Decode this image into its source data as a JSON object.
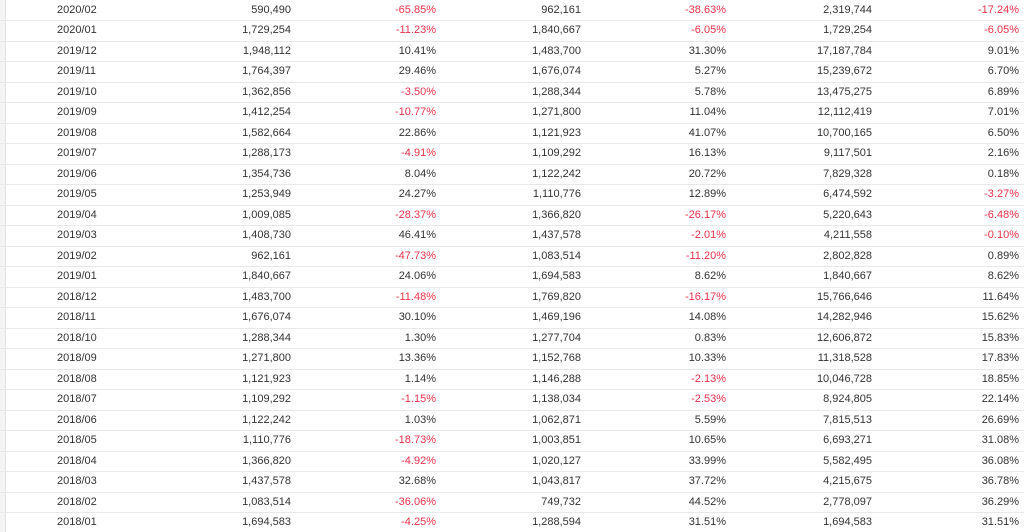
{
  "rows": [
    [
      "2020/02",
      "590,490",
      "-65.85%",
      "962,161",
      "-38.63%",
      "2,319,744",
      "-17.24%"
    ],
    [
      "2020/01",
      "1,729,254",
      "-11.23%",
      "1,840,667",
      "-6.05%",
      "1,729,254",
      "-6.05%"
    ],
    [
      "2019/12",
      "1,948,112",
      "10.41%",
      "1,483,700",
      "31.30%",
      "17,187,784",
      "9.01%"
    ],
    [
      "2019/11",
      "1,764,397",
      "29.46%",
      "1,676,074",
      "5.27%",
      "15,239,672",
      "6.70%"
    ],
    [
      "2019/10",
      "1,362,856",
      "-3.50%",
      "1,288,344",
      "5.78%",
      "13,475,275",
      "6.89%"
    ],
    [
      "2019/09",
      "1,412,254",
      "-10.77%",
      "1,271,800",
      "11.04%",
      "12,112,419",
      "7.01%"
    ],
    [
      "2019/08",
      "1,582,664",
      "22.86%",
      "1,121,923",
      "41.07%",
      "10,700,165",
      "6.50%"
    ],
    [
      "2019/07",
      "1,288,173",
      "-4.91%",
      "1,109,292",
      "16.13%",
      "9,117,501",
      "2.16%"
    ],
    [
      "2019/06",
      "1,354,736",
      "8.04%",
      "1,122,242",
      "20.72%",
      "7,829,328",
      "0.18%"
    ],
    [
      "2019/05",
      "1,253,949",
      "24.27%",
      "1,110,776",
      "12.89%",
      "6,474,592",
      "-3.27%"
    ],
    [
      "2019/04",
      "1,009,085",
      "-28.37%",
      "1,366,820",
      "-26.17%",
      "5,220,643",
      "-6.48%"
    ],
    [
      "2019/03",
      "1,408,730",
      "46.41%",
      "1,437,578",
      "-2.01%",
      "4,211,558",
      "-0.10%"
    ],
    [
      "2019/02",
      "962,161",
      "-47.73%",
      "1,083,514",
      "-11.20%",
      "2,802,828",
      "0.89%"
    ],
    [
      "2019/01",
      "1,840,667",
      "24.06%",
      "1,694,583",
      "8.62%",
      "1,840,667",
      "8.62%"
    ],
    [
      "2018/12",
      "1,483,700",
      "-11.48%",
      "1,769,820",
      "-16.17%",
      "15,766,646",
      "11.64%"
    ],
    [
      "2018/11",
      "1,676,074",
      "30.10%",
      "1,469,196",
      "14.08%",
      "14,282,946",
      "15.62%"
    ],
    [
      "2018/10",
      "1,288,344",
      "1.30%",
      "1,277,704",
      "0.83%",
      "12,606,872",
      "15.83%"
    ],
    [
      "2018/09",
      "1,271,800",
      "13.36%",
      "1,152,768",
      "10.33%",
      "11,318,528",
      "17.83%"
    ],
    [
      "2018/08",
      "1,121,923",
      "1.14%",
      "1,146,288",
      "-2.13%",
      "10,046,728",
      "18.85%"
    ],
    [
      "2018/07",
      "1,109,292",
      "-1.15%",
      "1,138,034",
      "-2.53%",
      "8,924,805",
      "22.14%"
    ],
    [
      "2018/06",
      "1,122,242",
      "1.03%",
      "1,062,871",
      "5.59%",
      "7,815,513",
      "26.69%"
    ],
    [
      "2018/05",
      "1,110,776",
      "-18.73%",
      "1,003,851",
      "10.65%",
      "6,693,271",
      "31.08%"
    ],
    [
      "2018/04",
      "1,366,820",
      "-4.92%",
      "1,020,127",
      "33.99%",
      "5,582,495",
      "36.08%"
    ],
    [
      "2018/03",
      "1,437,578",
      "32.68%",
      "1,043,817",
      "37.72%",
      "4,215,675",
      "36.78%"
    ],
    [
      "2018/02",
      "1,083,514",
      "-36.06%",
      "749,732",
      "44.52%",
      "2,778,097",
      "36.29%"
    ],
    [
      "2018/01",
      "1,694,583",
      "-4.25%",
      "1,288,594",
      "31.51%",
      "1,694,583",
      "31.51%"
    ]
  ],
  "colors": {
    "text": "#333333",
    "negative": "#e8334a",
    "row_border": "#e8e8e8"
  }
}
